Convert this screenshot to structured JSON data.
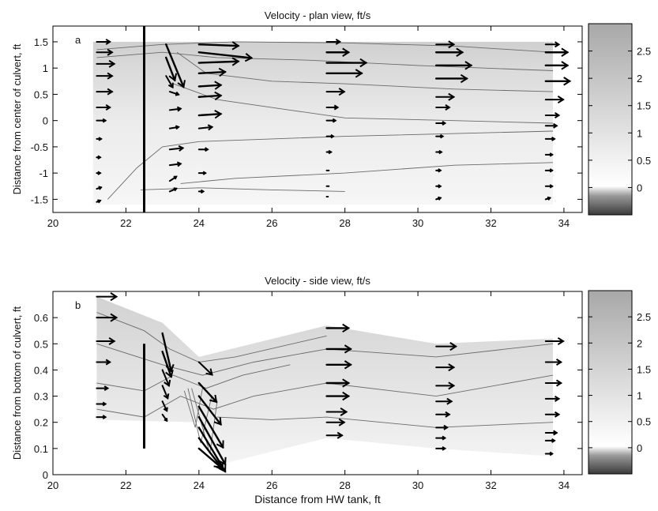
{
  "chart_data": [
    {
      "type": "heatmap",
      "panel_label": "a",
      "title": "Velocity - plan view, ft/s",
      "xlabel": "",
      "ylabel": "Distance from center of culvert, ft",
      "xlim": [
        20,
        34.5
      ],
      "ylim": [
        -1.75,
        1.8
      ],
      "xticks": [
        20,
        22,
        24,
        26,
        28,
        30,
        32,
        34
      ],
      "yticks": [
        -1.5,
        -1,
        -0.5,
        0,
        0.5,
        1,
        1.5
      ],
      "colorbar": {
        "range": [
          -0.5,
          3.0
        ],
        "ticks": [
          0,
          0.5,
          1,
          1.5,
          2,
          2.5
        ]
      },
      "field_extent": {
        "x": [
          21.1,
          33.7
        ],
        "y": [
          -1.6,
          1.5
        ]
      },
      "culvert_line_x": 22.5,
      "contour_lines": [
        [
          [
            21.2,
            1.35
          ],
          [
            23.0,
            1.45
          ],
          [
            25,
            1.5
          ],
          [
            28,
            1.48
          ],
          [
            31,
            1.42
          ],
          [
            33.7,
            1.3
          ]
        ],
        [
          [
            21.2,
            1.2
          ],
          [
            23.0,
            1.3
          ],
          [
            24.5,
            1.2
          ],
          [
            27,
            1.15
          ],
          [
            30,
            1.05
          ],
          [
            33.7,
            0.95
          ]
        ],
        [
          [
            23.4,
            1.3
          ],
          [
            24.2,
            0.9
          ],
          [
            26,
            0.75
          ],
          [
            28,
            0.7
          ],
          [
            31,
            0.6
          ],
          [
            33.7,
            0.55
          ]
        ],
        [
          [
            23.3,
            0.7
          ],
          [
            24.5,
            0.4
          ],
          [
            26.5,
            0.2
          ],
          [
            28,
            0.05
          ],
          [
            31,
            0.0
          ],
          [
            33.7,
            -0.05
          ]
        ],
        [
          [
            21.5,
            -1.5
          ],
          [
            22.3,
            -0.9
          ],
          [
            23.0,
            -0.5
          ],
          [
            24,
            -0.4
          ],
          [
            28,
            -0.3
          ],
          [
            33.7,
            -0.2
          ]
        ],
        [
          [
            23.5,
            -1.2
          ],
          [
            25,
            -1.1
          ],
          [
            28,
            -1.0
          ],
          [
            31,
            -0.85
          ],
          [
            33.7,
            -0.8
          ]
        ],
        [
          [
            22.4,
            -1.32
          ],
          [
            24.0,
            -1.28
          ],
          [
            26,
            -1.32
          ],
          [
            28,
            -1.35
          ]
        ]
      ],
      "vectors": [
        {
          "x": 21.2,
          "y": 1.5,
          "u": 0.3,
          "v": 0
        },
        {
          "x": 21.2,
          "y": 1.3,
          "u": 0.35,
          "v": 0
        },
        {
          "x": 21.2,
          "y": 1.08,
          "u": 0.4,
          "v": 0
        },
        {
          "x": 21.2,
          "y": 0.85,
          "u": 0.35,
          "v": 0
        },
        {
          "x": 21.2,
          "y": 0.55,
          "u": 0.35,
          "v": 0
        },
        {
          "x": 21.2,
          "y": 0.25,
          "u": 0.3,
          "v": 0
        },
        {
          "x": 21.2,
          "y": 0.0,
          "u": 0.2,
          "v": 0
        },
        {
          "x": 21.2,
          "y": -0.35,
          "u": 0.1,
          "v": 0
        },
        {
          "x": 21.2,
          "y": -0.7,
          "u": 0.08,
          "v": 0
        },
        {
          "x": 21.2,
          "y": -1.0,
          "u": 0.08,
          "v": 0
        },
        {
          "x": 21.2,
          "y": -1.3,
          "u": 0.1,
          "v": 0.05
        },
        {
          "x": 21.2,
          "y": -1.55,
          "u": 0.08,
          "v": 0.05
        },
        {
          "x": 23.1,
          "y": 1.45,
          "u": 0.4,
          "v": -1.5
        },
        {
          "x": 23.1,
          "y": 1.2,
          "u": 0.2,
          "v": -0.8
        },
        {
          "x": 23.1,
          "y": 0.85,
          "u": 0.15,
          "v": -0.4
        },
        {
          "x": 23.2,
          "y": 0.55,
          "u": 0.2,
          "v": -0.1
        },
        {
          "x": 23.2,
          "y": 0.2,
          "u": 0.25,
          "v": 0.05
        },
        {
          "x": 23.2,
          "y": -0.15,
          "u": 0.2,
          "v": 0.05
        },
        {
          "x": 23.2,
          "y": -0.55,
          "u": 0.3,
          "v": 0.05
        },
        {
          "x": 23.2,
          "y": -0.85,
          "u": 0.25,
          "v": 0.05
        },
        {
          "x": 23.2,
          "y": -1.15,
          "u": 0.15,
          "v": 0.15
        },
        {
          "x": 23.2,
          "y": -1.35,
          "u": 0.15,
          "v": 0.1
        },
        {
          "x": 24.0,
          "y": 1.45,
          "u": 0.9,
          "v": -0.05
        },
        {
          "x": 24.0,
          "y": 1.3,
          "u": 1.2,
          "v": -0.2
        },
        {
          "x": 24.0,
          "y": 1.1,
          "u": 0.9,
          "v": 0.05
        },
        {
          "x": 24.0,
          "y": 0.9,
          "u": 0.6,
          "v": 0.05
        },
        {
          "x": 24.0,
          "y": 0.65,
          "u": 0.5,
          "v": 0.05
        },
        {
          "x": 24.0,
          "y": 0.45,
          "u": 0.5,
          "v": 0.05
        },
        {
          "x": 24.0,
          "y": 0.1,
          "u": 0.5,
          "v": 0.05
        },
        {
          "x": 24.0,
          "y": -0.15,
          "u": 0.3,
          "v": 0.05
        },
        {
          "x": 24.0,
          "y": -0.55,
          "u": 0.2,
          "v": 0.0
        },
        {
          "x": 24.0,
          "y": -1.0,
          "u": 0.15,
          "v": 0.0
        },
        {
          "x": 24.0,
          "y": -1.35,
          "u": 0.1,
          "v": 0.0
        },
        {
          "x": 27.5,
          "y": 1.5,
          "u": 0.3,
          "v": 0
        },
        {
          "x": 27.5,
          "y": 1.3,
          "u": 0.5,
          "v": 0
        },
        {
          "x": 27.5,
          "y": 1.1,
          "u": 0.9,
          "v": 0
        },
        {
          "x": 27.5,
          "y": 0.9,
          "u": 0.8,
          "v": 0
        },
        {
          "x": 27.5,
          "y": 0.55,
          "u": 0.4,
          "v": 0
        },
        {
          "x": 27.5,
          "y": 0.25,
          "u": 0.25,
          "v": 0
        },
        {
          "x": 27.5,
          "y": 0.0,
          "u": 0.2,
          "v": 0
        },
        {
          "x": 27.5,
          "y": -0.3,
          "u": 0.15,
          "v": 0
        },
        {
          "x": 27.5,
          "y": -0.6,
          "u": 0.1,
          "v": 0
        },
        {
          "x": 27.5,
          "y": -0.95,
          "u": 0.05,
          "v": 0
        },
        {
          "x": 27.5,
          "y": -1.25,
          "u": 0.05,
          "v": 0
        },
        {
          "x": 27.5,
          "y": -1.45,
          "u": 0.03,
          "v": 0
        },
        {
          "x": 30.5,
          "y": 1.45,
          "u": 0.4,
          "v": 0
        },
        {
          "x": 30.5,
          "y": 1.3,
          "u": 0.6,
          "v": 0
        },
        {
          "x": 30.5,
          "y": 1.05,
          "u": 0.8,
          "v": 0
        },
        {
          "x": 30.5,
          "y": 0.8,
          "u": 0.7,
          "v": 0
        },
        {
          "x": 30.5,
          "y": 0.45,
          "u": 0.4,
          "v": 0
        },
        {
          "x": 30.5,
          "y": 0.25,
          "u": 0.3,
          "v": 0
        },
        {
          "x": 30.5,
          "y": -0.05,
          "u": 0.2,
          "v": 0
        },
        {
          "x": 30.5,
          "y": -0.3,
          "u": 0.15,
          "v": 0
        },
        {
          "x": 30.5,
          "y": -0.6,
          "u": 0.12,
          "v": 0
        },
        {
          "x": 30.5,
          "y": -0.95,
          "u": 0.1,
          "v": 0
        },
        {
          "x": 30.5,
          "y": -1.25,
          "u": 0.1,
          "v": 0
        },
        {
          "x": 30.5,
          "y": -1.5,
          "u": 0.1,
          "v": 0.05
        },
        {
          "x": 33.5,
          "y": 1.45,
          "u": 0.3,
          "v": 0
        },
        {
          "x": 33.5,
          "y": 1.3,
          "u": 0.5,
          "v": 0
        },
        {
          "x": 33.5,
          "y": 1.05,
          "u": 0.5,
          "v": 0
        },
        {
          "x": 33.5,
          "y": 0.75,
          "u": 0.55,
          "v": 0
        },
        {
          "x": 33.5,
          "y": 0.4,
          "u": 0.4,
          "v": 0
        },
        {
          "x": 33.5,
          "y": 0.1,
          "u": 0.3,
          "v": 0
        },
        {
          "x": 33.5,
          "y": -0.1,
          "u": 0.25,
          "v": 0
        },
        {
          "x": 33.5,
          "y": -0.35,
          "u": 0.2,
          "v": 0
        },
        {
          "x": 33.5,
          "y": -0.65,
          "u": 0.15,
          "v": 0
        },
        {
          "x": 33.5,
          "y": -0.95,
          "u": 0.15,
          "v": 0
        },
        {
          "x": 33.5,
          "y": -1.25,
          "u": 0.15,
          "v": 0
        },
        {
          "x": 33.5,
          "y": -1.5,
          "u": 0.1,
          "v": 0.05
        }
      ]
    },
    {
      "type": "heatmap",
      "panel_label": "b",
      "title": "Velocity - side view, ft/s",
      "xlabel": "Distance from HW tank, ft",
      "ylabel": "Distance from bottom of culvert, ft",
      "xlim": [
        20,
        34.5
      ],
      "ylim": [
        0,
        0.7
      ],
      "xticks": [
        20,
        22,
        24,
        26,
        28,
        30,
        32,
        34
      ],
      "yticks": [
        0,
        0.1,
        0.2,
        0.3,
        0.4,
        0.5,
        0.6
      ],
      "colorbar": {
        "range": [
          -0.5,
          3.0
        ],
        "ticks": [
          0,
          0.5,
          1,
          1.5,
          2,
          2.5
        ]
      },
      "field_outline": [
        [
          21.2,
          0.68
        ],
        [
          23.0,
          0.58
        ],
        [
          24.0,
          0.45
        ],
        [
          27.5,
          0.57
        ],
        [
          30.5,
          0.5
        ],
        [
          33.7,
          0.52
        ],
        [
          33.7,
          0.07
        ],
        [
          30.5,
          0.1
        ],
        [
          27.5,
          0.14
        ],
        [
          24.6,
          0.04
        ],
        [
          24.0,
          0.2
        ],
        [
          21.2,
          0.21
        ]
      ],
      "culvert_line": {
        "x": 22.5,
        "y": [
          0.1,
          0.5
        ]
      },
      "contour_lines": [
        [
          [
            21.2,
            0.62
          ],
          [
            22.5,
            0.55
          ],
          [
            23.2,
            0.48
          ],
          [
            24.0,
            0.43
          ],
          [
            25,
            0.45
          ],
          [
            27.5,
            0.53
          ]
        ],
        [
          [
            21.2,
            0.5
          ],
          [
            23.0,
            0.42
          ],
          [
            24.1,
            0.38
          ],
          [
            25.5,
            0.43
          ],
          [
            27.5,
            0.48
          ],
          [
            30.5,
            0.45
          ],
          [
            33.7,
            0.5
          ]
        ],
        [
          [
            21.2,
            0.35
          ],
          [
            22.5,
            0.32
          ],
          [
            23.3,
            0.38
          ],
          [
            24.2,
            0.33
          ],
          [
            25.2,
            0.38
          ],
          [
            26.5,
            0.42
          ]
        ],
        [
          [
            21.2,
            0.25
          ],
          [
            22.5,
            0.22
          ],
          [
            23.5,
            0.3
          ],
          [
            24.4,
            0.25
          ],
          [
            25.5,
            0.3
          ],
          [
            27.5,
            0.35
          ],
          [
            30.5,
            0.3
          ],
          [
            33.7,
            0.38
          ]
        ],
        [
          [
            23.6,
            0.32
          ],
          [
            23.9,
            0.18
          ],
          [
            24.1,
            0.33
          ]
        ],
        [
          [
            23.7,
            0.33
          ],
          [
            24.05,
            0.12
          ],
          [
            24.35,
            0.3
          ]
        ],
        [
          [
            23.8,
            0.33
          ],
          [
            24.3,
            0.08
          ],
          [
            24.5,
            0.28
          ]
        ],
        [
          [
            24.5,
            0.22
          ],
          [
            26,
            0.21
          ],
          [
            27.5,
            0.22
          ],
          [
            30.5,
            0.18
          ],
          [
            33.7,
            0.2
          ]
        ]
      ],
      "vectors": [
        {
          "x": 21.2,
          "y": 0.68,
          "u": 0.45,
          "v": 0
        },
        {
          "x": 21.2,
          "y": 0.6,
          "u": 0.45,
          "v": 0
        },
        {
          "x": 21.2,
          "y": 0.51,
          "u": 0.4,
          "v": 0
        },
        {
          "x": 21.2,
          "y": 0.43,
          "u": 0.3,
          "v": 0
        },
        {
          "x": 21.2,
          "y": 0.33,
          "u": 0.25,
          "v": 0
        },
        {
          "x": 21.2,
          "y": 0.27,
          "u": 0.2,
          "v": 0
        },
        {
          "x": 21.2,
          "y": 0.22,
          "u": 0.2,
          "v": 0
        },
        {
          "x": 23.0,
          "y": 0.54,
          "u": 0.2,
          "v": -0.12
        },
        {
          "x": 23.0,
          "y": 0.47,
          "u": 0.2,
          "v": -0.08
        },
        {
          "x": 23.0,
          "y": 0.4,
          "u": 0.15,
          "v": -0.05
        },
        {
          "x": 23.0,
          "y": 0.34,
          "u": 0.12,
          "v": -0.04
        },
        {
          "x": 23.0,
          "y": 0.28,
          "u": 0.1,
          "v": -0.03
        },
        {
          "x": 23.0,
          "y": 0.23,
          "u": 0.1,
          "v": -0.02
        },
        {
          "x": 24.0,
          "y": 0.43,
          "u": 0.3,
          "v": -0.04
        },
        {
          "x": 24.0,
          "y": 0.35,
          "u": 0.4,
          "v": -0.06
        },
        {
          "x": 24.0,
          "y": 0.3,
          "u": 0.5,
          "v": -0.09
        },
        {
          "x": 24.0,
          "y": 0.26,
          "u": 0.55,
          "v": -0.13
        },
        {
          "x": 24.0,
          "y": 0.22,
          "u": 0.6,
          "v": -0.15
        },
        {
          "x": 24.0,
          "y": 0.18,
          "u": 0.6,
          "v": -0.14
        },
        {
          "x": 24.0,
          "y": 0.14,
          "u": 0.55,
          "v": -0.1
        },
        {
          "x": 24.0,
          "y": 0.1,
          "u": 0.5,
          "v": -0.06
        },
        {
          "x": 27.5,
          "y": 0.56,
          "u": 0.5,
          "v": 0
        },
        {
          "x": 27.5,
          "y": 0.48,
          "u": 0.55,
          "v": 0
        },
        {
          "x": 27.5,
          "y": 0.42,
          "u": 0.55,
          "v": 0
        },
        {
          "x": 27.5,
          "y": 0.35,
          "u": 0.5,
          "v": 0
        },
        {
          "x": 27.5,
          "y": 0.3,
          "u": 0.5,
          "v": 0
        },
        {
          "x": 27.5,
          "y": 0.24,
          "u": 0.45,
          "v": 0
        },
        {
          "x": 27.5,
          "y": 0.2,
          "u": 0.4,
          "v": 0
        },
        {
          "x": 27.5,
          "y": 0.15,
          "u": 0.35,
          "v": 0
        },
        {
          "x": 30.5,
          "y": 0.49,
          "u": 0.45,
          "v": 0
        },
        {
          "x": 30.5,
          "y": 0.41,
          "u": 0.4,
          "v": 0
        },
        {
          "x": 30.5,
          "y": 0.34,
          "u": 0.4,
          "v": 0
        },
        {
          "x": 30.5,
          "y": 0.28,
          "u": 0.35,
          "v": 0
        },
        {
          "x": 30.5,
          "y": 0.23,
          "u": 0.3,
          "v": 0
        },
        {
          "x": 30.5,
          "y": 0.18,
          "u": 0.25,
          "v": 0
        },
        {
          "x": 30.5,
          "y": 0.14,
          "u": 0.2,
          "v": 0
        },
        {
          "x": 30.5,
          "y": 0.1,
          "u": 0.2,
          "v": 0
        },
        {
          "x": 33.5,
          "y": 0.51,
          "u": 0.4,
          "v": 0
        },
        {
          "x": 33.5,
          "y": 0.43,
          "u": 0.35,
          "v": 0
        },
        {
          "x": 33.5,
          "y": 0.35,
          "u": 0.35,
          "v": 0
        },
        {
          "x": 33.5,
          "y": 0.29,
          "u": 0.3,
          "v": 0
        },
        {
          "x": 33.5,
          "y": 0.23,
          "u": 0.3,
          "v": 0
        },
        {
          "x": 33.5,
          "y": 0.16,
          "u": 0.25,
          "v": 0
        },
        {
          "x": 33.5,
          "y": 0.13,
          "u": 0.2,
          "v": 0
        },
        {
          "x": 33.5,
          "y": 0.08,
          "u": 0.15,
          "v": 0
        }
      ]
    }
  ]
}
